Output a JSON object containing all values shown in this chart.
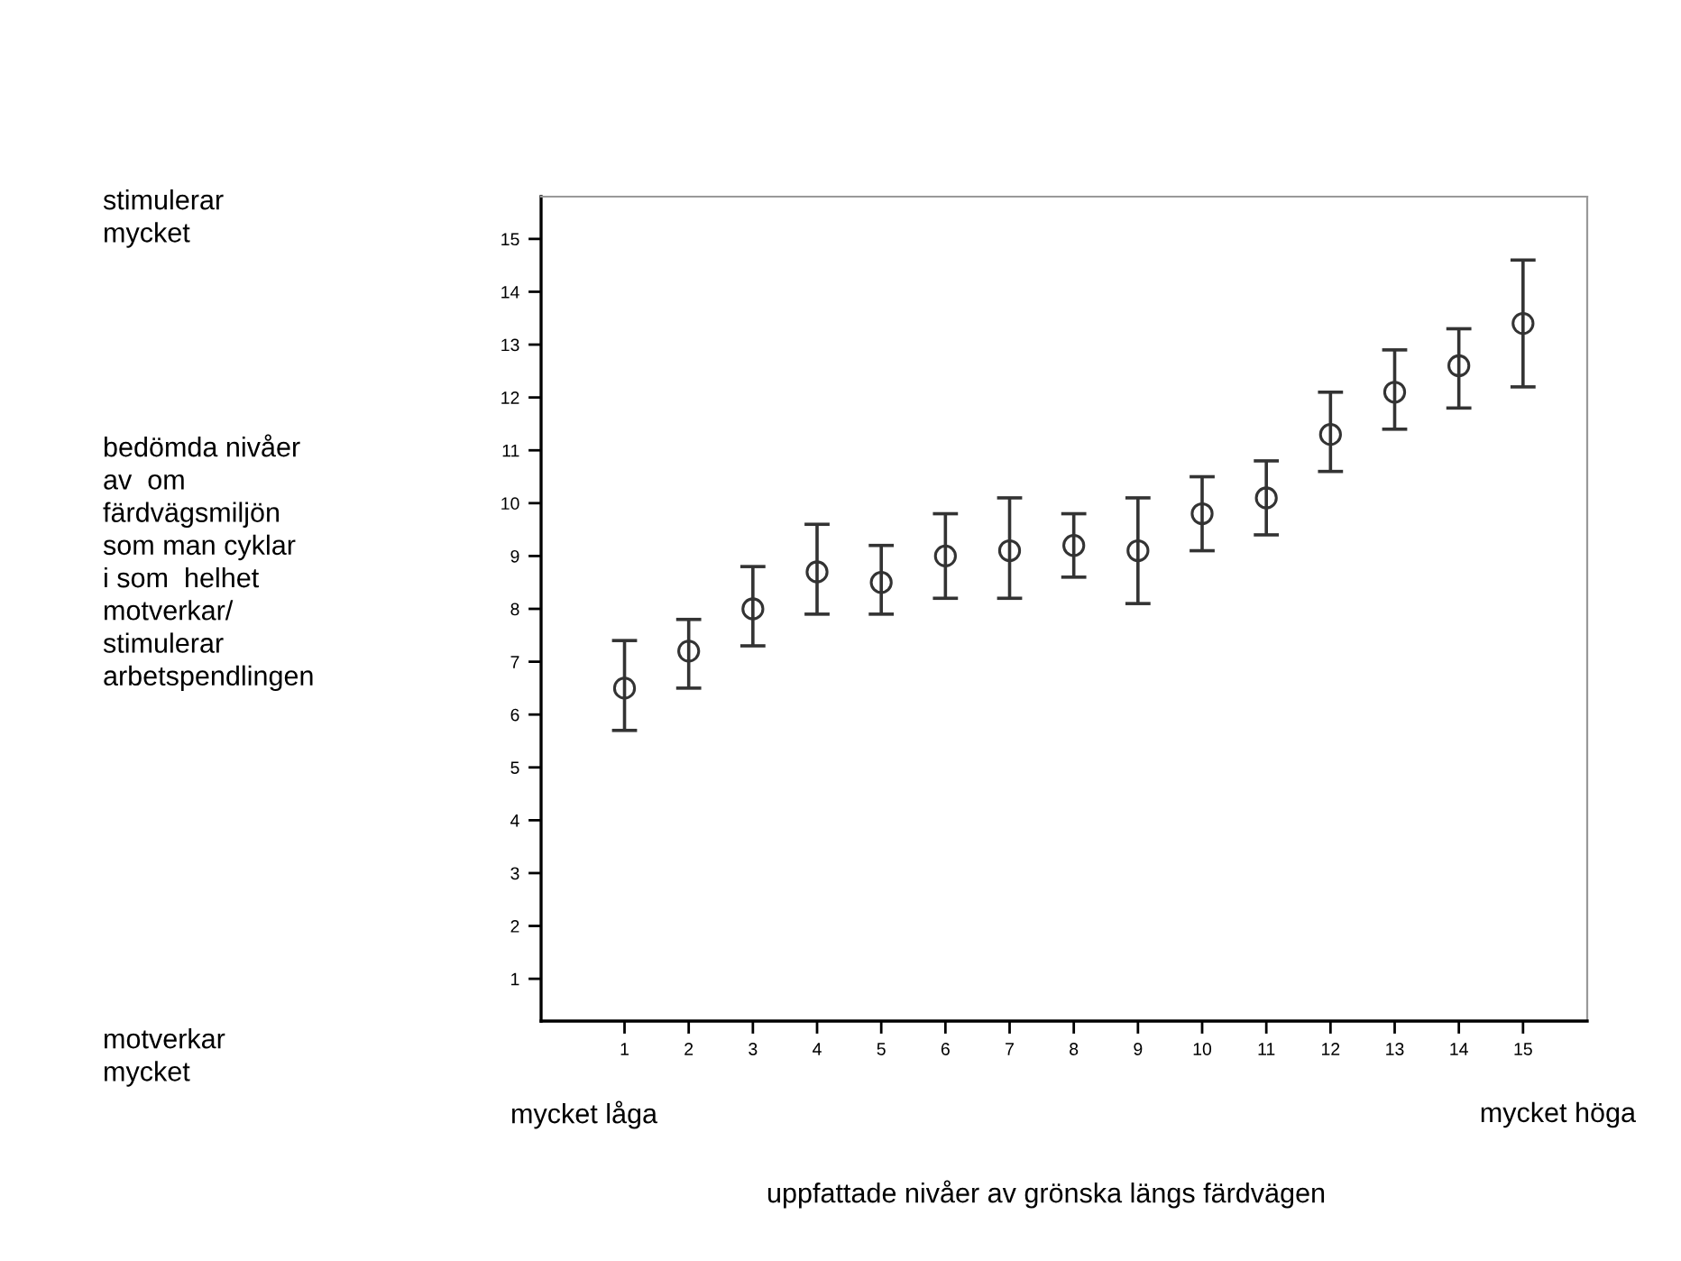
{
  "chart_data": {
    "type": "scatter",
    "xlabel": "uppfattade nivåer av grönska längs färdvägen",
    "annotations": [
      "stimulerar\nmycket",
      "bedömda nivåer\nav  om\nfärdvägsmiljön\nsom man cyklar\ni som  helhet\nmotverkar/\nstimulerar\narbetspendlingen",
      "motverkar\nmycket",
      "mycket låga",
      "mycket höga"
    ],
    "x": [
      1,
      2,
      3,
      4,
      5,
      6,
      7,
      8,
      9,
      10,
      11,
      12,
      13,
      14,
      15
    ],
    "series": [
      {
        "color": "#333333",
        "values": [
          6.5,
          7.2,
          8.0,
          8.7,
          8.5,
          9.0,
          9.1,
          9.2,
          9.1,
          9.8,
          10.1,
          11.3,
          12.1,
          12.6,
          13.4
        ],
        "errors": [
          [
            5.7,
            7.4
          ],
          [
            6.5,
            7.8
          ],
          [
            7.3,
            8.8
          ],
          [
            7.9,
            9.6
          ],
          [
            7.9,
            9.2
          ],
          [
            8.2,
            9.8
          ],
          [
            8.2,
            10.1
          ],
          [
            8.6,
            9.8
          ],
          [
            8.1,
            10.1
          ],
          [
            9.1,
            10.5
          ],
          [
            9.4,
            10.8
          ],
          [
            10.6,
            12.1
          ],
          [
            11.4,
            12.9
          ],
          [
            11.8,
            13.3
          ],
          [
            12.2,
            14.6
          ]
        ]
      }
    ],
    "marker": "circle",
    "xlim": [
      -0.3,
      16.0
    ],
    "ylim": [
      0.2,
      15.8
    ],
    "xticks": [
      1,
      2,
      3,
      4,
      5,
      6,
      7,
      8,
      9,
      10,
      11,
      12,
      13,
      14,
      15
    ],
    "yticks": [
      1,
      2,
      3,
      4,
      5,
      6,
      7,
      8,
      9,
      10,
      11,
      12,
      13,
      14,
      15
    ],
    "grid": false,
    "legend": false
  }
}
